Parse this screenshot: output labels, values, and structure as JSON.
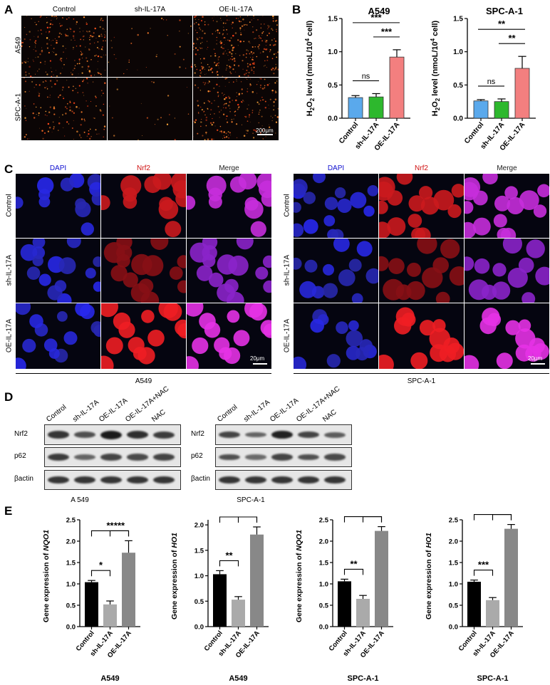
{
  "panel_labels": {
    "A": "A",
    "B": "B",
    "C": "C",
    "D": "D",
    "E": "E"
  },
  "panelA": {
    "columns": [
      "Control",
      "sh-IL-17A",
      "OE-IL-17A"
    ],
    "rows": [
      "A549",
      "SPC-A-1"
    ],
    "scale_bar": "200μm",
    "density": [
      [
        0.55,
        0.08,
        0.75
      ],
      [
        0.35,
        0.05,
        0.55
      ]
    ]
  },
  "panelC": {
    "columns": [
      "DAPI",
      "Nrf2",
      "Merge"
    ],
    "rows": [
      "Control",
      "sh-IL-17A",
      "OE-IL-17A"
    ],
    "scale_bar": "20μm",
    "groups": [
      "A549",
      "SPC-A-1"
    ],
    "column_colors": {
      "DAPI": "#1010d0",
      "Nrf2": "#d01010",
      "Merge": "#222"
    }
  },
  "panelD": {
    "lanes": [
      "Control",
      "sh-IL-17A",
      "OE-IL-17A",
      "OE-IL-17A+NAC",
      "NAC"
    ],
    "proteins": [
      "Nrf2",
      "p62",
      "βactin"
    ],
    "groups": [
      "A 549",
      "SPC-A-1"
    ],
    "band_intensity": {
      "A549": {
        "Nrf2": [
          0.8,
          0.6,
          1.0,
          0.85,
          0.75
        ],
        "p62": [
          0.75,
          0.45,
          0.7,
          0.65,
          0.7
        ],
        "βactin": [
          0.8,
          0.8,
          0.8,
          0.8,
          0.8
        ]
      },
      "SPC-A-1": {
        "Nrf2": [
          0.7,
          0.45,
          0.95,
          0.7,
          0.5
        ],
        "p62": [
          0.6,
          0.4,
          0.7,
          0.6,
          0.65
        ],
        "βactin": [
          0.8,
          0.8,
          0.8,
          0.8,
          0.8
        ]
      }
    }
  },
  "chart_data": [
    {
      "type": "bar",
      "panel": "B",
      "title": "A549",
      "categories": [
        "Control",
        "sh-IL-17A",
        "OE-IL-17A"
      ],
      "values": [
        0.31,
        0.32,
        0.92
      ],
      "errors": [
        0.03,
        0.05,
        0.11
      ],
      "colors": [
        "#5aa9ec",
        "#2db82d",
        "#f37f7f"
      ],
      "ylabel": "H2O2 level (nmoL/10^4 cell)",
      "ylim": [
        0,
        1.5
      ],
      "yticks": [
        0.0,
        0.5,
        1.0,
        1.5
      ],
      "comparisons": [
        {
          "from": 0,
          "to": 1,
          "label": "ns"
        },
        {
          "from": 1,
          "to": 2,
          "label": "***"
        },
        {
          "from": 0,
          "to": 2,
          "label": "***"
        }
      ]
    },
    {
      "type": "bar",
      "panel": "B",
      "title": "SPC-A-1",
      "categories": [
        "Control",
        "sh-IL-17A",
        "OE-IL-17A"
      ],
      "values": [
        0.26,
        0.25,
        0.75
      ],
      "errors": [
        0.02,
        0.04,
        0.18
      ],
      "colors": [
        "#5aa9ec",
        "#2db82d",
        "#f37f7f"
      ],
      "ylabel": "H2O2 level (nmoL/10^4 cell)",
      "ylim": [
        0,
        1.5
      ],
      "yticks": [
        0.0,
        0.5,
        1.0,
        1.5
      ],
      "comparisons": [
        {
          "from": 0,
          "to": 1,
          "label": "ns"
        },
        {
          "from": 1,
          "to": 2,
          "label": "**"
        },
        {
          "from": 0,
          "to": 2,
          "label": "**"
        }
      ]
    },
    {
      "type": "bar",
      "panel": "E",
      "xlabel": "A549",
      "gene": "NQO1",
      "categories": [
        "Control",
        "sh-IL-17A",
        "OE-IL-17A"
      ],
      "values": [
        1.04,
        0.52,
        1.73
      ],
      "errors": [
        0.04,
        0.08,
        0.28
      ],
      "colors": [
        "#000000",
        "#aaaaaa",
        "#888888"
      ],
      "ylim": [
        0,
        2.5
      ],
      "yticks": [
        0.0,
        0.5,
        1.0,
        1.5,
        2.0,
        2.5
      ],
      "comparisons": [
        {
          "from": 0,
          "to": 1,
          "label": "*"
        },
        {
          "from": 1,
          "to": 2,
          "label": "***"
        },
        {
          "from": 0,
          "to": 2,
          "label": "**"
        }
      ]
    },
    {
      "type": "bar",
      "panel": "E",
      "xlabel": "A549",
      "gene": "HO1",
      "categories": [
        "Control",
        "sh-IL-17A",
        "OE-IL-17A"
      ],
      "values": [
        1.03,
        0.53,
        1.81
      ],
      "errors": [
        0.07,
        0.06,
        0.15
      ],
      "colors": [
        "#000000",
        "#aaaaaa",
        "#888888"
      ],
      "ylim": [
        0,
        2.1
      ],
      "yticks": [
        0.0,
        0.5,
        1.0,
        1.5,
        2.0
      ],
      "comparisons": [
        {
          "from": 0,
          "to": 1,
          "label": "**"
        },
        {
          "from": 1,
          "to": 2,
          "label": "****"
        },
        {
          "from": 0,
          "to": 2,
          "label": "***"
        }
      ]
    },
    {
      "type": "bar",
      "panel": "E",
      "xlabel": "SPC-A-1",
      "gene": "NQO1",
      "categories": [
        "Control",
        "sh-IL-17A",
        "OE-IL-17A"
      ],
      "values": [
        1.06,
        0.65,
        2.24
      ],
      "errors": [
        0.05,
        0.08,
        0.1
      ],
      "colors": [
        "#000000",
        "#aaaaaa",
        "#888888"
      ],
      "ylim": [
        0,
        2.5
      ],
      "yticks": [
        0.0,
        0.5,
        1.0,
        1.5,
        2.0,
        2.5
      ],
      "comparisons": [
        {
          "from": 0,
          "to": 1,
          "label": "**"
        },
        {
          "from": 1,
          "to": 2,
          "label": "****"
        },
        {
          "from": 0,
          "to": 2,
          "label": "****"
        }
      ]
    },
    {
      "type": "bar",
      "panel": "E",
      "xlabel": "SPC-A-1",
      "gene": "HO1",
      "categories": [
        "Control",
        "sh-IL-17A",
        "OE-IL-17A"
      ],
      "values": [
        1.05,
        0.62,
        2.29
      ],
      "errors": [
        0.04,
        0.06,
        0.1
      ],
      "colors": [
        "#000000",
        "#aaaaaa",
        "#888888"
      ],
      "ylim": [
        0,
        2.5
      ],
      "yticks": [
        0.0,
        0.5,
        1.0,
        1.5,
        2.0,
        2.5
      ],
      "comparisons": [
        {
          "from": 0,
          "to": 1,
          "label": "***"
        },
        {
          "from": 1,
          "to": 2,
          "label": "****"
        },
        {
          "from": 0,
          "to": 2,
          "label": "****"
        }
      ]
    }
  ]
}
